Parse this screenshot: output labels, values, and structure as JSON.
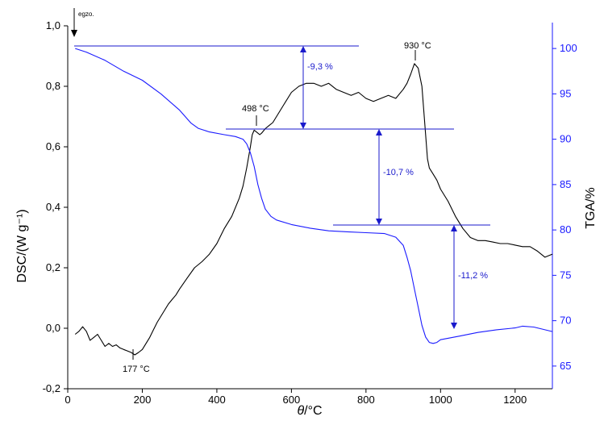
{
  "chart_data": {
    "type": "line",
    "x_axis": {
      "label_symbol": "θ",
      "label_unit": "/°C",
      "range": [
        0,
        1300
      ],
      "ticks": [
        "0",
        "200",
        "400",
        "600",
        "800",
        "1000",
        "1200"
      ]
    },
    "y_left": {
      "label": "DSC/(W g⁻¹)",
      "range": [
        -0.2,
        1.0
      ],
      "ticks": [
        "-0,2",
        "0,0",
        "0,2",
        "0,4",
        "0,6",
        "0,8",
        "1,0"
      ]
    },
    "y_right": {
      "label": "TGA/%",
      "range": [
        62.5,
        102.5
      ],
      "ticks": [
        "65",
        "70",
        "75",
        "80",
        "85",
        "90",
        "95",
        "100"
      ]
    },
    "colors": {
      "dsc": "#000000",
      "tga": "#1a1aff",
      "right_axis": "#1a1aff",
      "arrow": "#1a1acc"
    },
    "series": [
      {
        "axis": "left",
        "x": [
          20,
          30,
          40,
          50,
          60,
          70,
          80,
          90,
          100,
          110,
          120,
          130,
          140,
          150,
          160,
          170,
          180,
          190,
          200,
          210,
          220,
          230,
          240,
          250,
          260,
          270,
          280,
          290,
          300,
          320,
          340,
          360,
          380,
          400,
          420,
          440,
          460,
          470,
          480,
          490,
          495,
          500,
          505,
          510,
          515,
          520,
          530,
          540,
          550,
          560,
          580,
          600,
          620,
          640,
          660,
          680,
          700,
          720,
          740,
          760,
          780,
          800,
          820,
          840,
          860,
          880,
          900,
          910,
          920,
          930,
          940,
          950,
          955,
          960,
          965,
          970,
          980,
          990,
          1000,
          1020,
          1040,
          1060,
          1080,
          1100,
          1120,
          1140,
          1160,
          1180,
          1200,
          1220,
          1240,
          1260,
          1280,
          1300
        ],
        "y": [
          -0.02,
          -0.01,
          0.005,
          -0.01,
          -0.04,
          -0.03,
          -0.02,
          -0.04,
          -0.06,
          -0.05,
          -0.06,
          -0.055,
          -0.065,
          -0.07,
          -0.075,
          -0.08,
          -0.088,
          -0.08,
          -0.07,
          -0.05,
          -0.03,
          -0.005,
          0.02,
          0.04,
          0.06,
          0.08,
          0.095,
          0.11,
          0.13,
          0.165,
          0.2,
          0.22,
          0.245,
          0.28,
          0.33,
          0.37,
          0.43,
          0.47,
          0.53,
          0.6,
          0.64,
          0.655,
          0.65,
          0.645,
          0.64,
          0.645,
          0.66,
          0.67,
          0.68,
          0.7,
          0.74,
          0.78,
          0.8,
          0.81,
          0.81,
          0.8,
          0.81,
          0.79,
          0.78,
          0.77,
          0.78,
          0.76,
          0.75,
          0.76,
          0.77,
          0.76,
          0.79,
          0.81,
          0.84,
          0.875,
          0.86,
          0.8,
          0.72,
          0.64,
          0.56,
          0.53,
          0.51,
          0.49,
          0.46,
          0.42,
          0.37,
          0.33,
          0.3,
          0.29,
          0.29,
          0.285,
          0.28,
          0.28,
          0.275,
          0.27,
          0.27,
          0.255,
          0.235,
          0.245
        ]
      },
      {
        "axis": "right",
        "x": [
          20,
          50,
          100,
          150,
          200,
          250,
          300,
          330,
          350,
          380,
          420,
          450,
          470,
          480,
          490,
          500,
          510,
          520,
          530,
          545,
          560,
          600,
          650,
          700,
          750,
          800,
          850,
          880,
          900,
          910,
          920,
          930,
          940,
          950,
          960,
          970,
          980,
          990,
          1000,
          1050,
          1100,
          1150,
          1200,
          1220,
          1250,
          1280,
          1300
        ],
        "y": [
          100,
          99.6,
          98.7,
          97.5,
          96.5,
          95,
          93.2,
          91.8,
          91.2,
          90.8,
          90.5,
          90.3,
          90.0,
          89.5,
          88.5,
          87,
          85,
          83.5,
          82.3,
          81.5,
          81.1,
          80.6,
          80.2,
          79.9,
          79.8,
          79.7,
          79.6,
          79.2,
          78.3,
          77,
          75.5,
          73.5,
          71.5,
          69.5,
          68.2,
          67.6,
          67.5,
          67.6,
          67.9,
          68.3,
          68.7,
          69.0,
          69.2,
          69.4,
          69.3,
          69.0,
          68.8
        ]
      }
    ],
    "annotations": {
      "exo": "egzo.",
      "peak_177": "177 °C",
      "peak_498": "498 °C",
      "peak_930": "930 °C",
      "loss_1": "-9,3 %",
      "loss_2": "-10,7 %",
      "loss_3": "-11,2 %"
    }
  }
}
